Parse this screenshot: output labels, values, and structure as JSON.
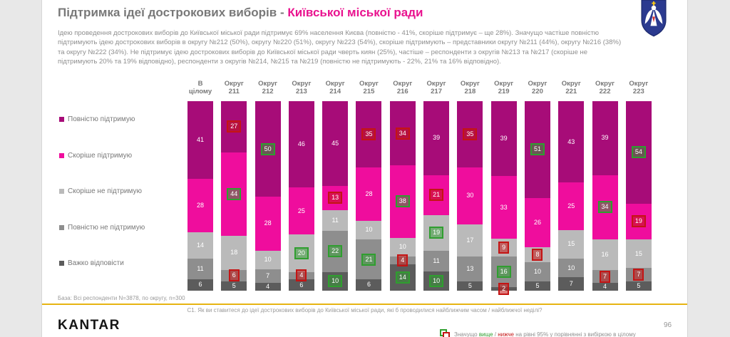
{
  "title": {
    "prefix": "Підтримка ідеї дострокових виборів - ",
    "highlight": "Київської міської ради"
  },
  "intro": "Ідею проведення дострокових виборів до Київської міської ради підтримує 69% населення Києва (повністю - 41%, скоріше підтримує – ще 28%). Значущо частіше повністю підтримують ідею дострокових виборів в округу №212 (50%), округу №220 (51%), округу №223 (54%), скоріше підтримують – представники округу №211 (44%), округу №216 (38%) та округу №222 (34%). Не підтримує ідею дострокових виборів до Київської міської ради чверть киян (25%), частіше – респонденти з округів №213 та №217 (скоріше не підтримують 20% та 19% відповідно), респонденти з округів №214, №215 та №219 (повністю не підтримують - 22%, 21% та 16% відповідно).",
  "chart_data": {
    "type": "bar",
    "stacked": true,
    "unit": "%",
    "ylim": [
      0,
      100
    ],
    "legend_position": "left",
    "categories": [
      "В цілому",
      "Округ 211",
      "Округ 212",
      "Округ 213",
      "Округ 214",
      "Округ 215",
      "Округ 216",
      "Округ 217",
      "Округ 218",
      "Округ 219",
      "Округ 220",
      "Округ 221",
      "Округ 222",
      "Округ 223"
    ],
    "series": [
      {
        "name": "Повністю підтримую",
        "color": "#a70c78",
        "values": [
          41,
          27,
          50,
          46,
          45,
          35,
          34,
          39,
          35,
          39,
          51,
          43,
          39,
          54
        ],
        "flags": [
          "",
          "r",
          "g",
          "",
          "",
          "r",
          "r",
          "",
          "r",
          "",
          "g",
          "",
          "",
          "g"
        ]
      },
      {
        "name": "Скоріше підтримую",
        "color": "#ef0d9d",
        "values": [
          28,
          44,
          28,
          25,
          13,
          28,
          38,
          21,
          30,
          33,
          26,
          25,
          34,
          19
        ],
        "flags": [
          "",
          "g",
          "",
          "",
          "r",
          "",
          "g",
          "r",
          "",
          "",
          "",
          "",
          "g",
          "r"
        ]
      },
      {
        "name": "Скоріше не підтримую",
        "color": "#bababa",
        "values": [
          14,
          18,
          10,
          20,
          11,
          10,
          10,
          19,
          17,
          9,
          8,
          15,
          16,
          15
        ],
        "flags": [
          "",
          "",
          "",
          "g",
          "",
          "",
          "",
          "g",
          "",
          "r",
          "r",
          "",
          "",
          ""
        ]
      },
      {
        "name": "Повністю не підтримую",
        "color": "#8e8e8e",
        "values": [
          11,
          6,
          7,
          4,
          22,
          21,
          4,
          11,
          13,
          16,
          10,
          10,
          7,
          7
        ],
        "flags": [
          "",
          "r",
          "",
          "r",
          "g",
          "g",
          "r",
          "",
          "",
          "g",
          "",
          "",
          "r",
          "r"
        ]
      },
      {
        "name": "Важко відповісти",
        "color": "#5c5c5c",
        "values": [
          6,
          5,
          4,
          6,
          10,
          6,
          14,
          10,
          5,
          2,
          5,
          7,
          4,
          5
        ],
        "flags": [
          "",
          "",
          "",
          "",
          "g",
          "",
          "g",
          "g",
          "",
          "r",
          "",
          "",
          "",
          ""
        ]
      }
    ],
    "significance_colors": {
      "higher": "#2f9e2f",
      "lower": "#c41414"
    }
  },
  "footer": {
    "base_note": "База: Всі респонденти N=3878, по округу, n=300",
    "question": "С1. Як ви ставитеся до ідеї дострокових виборів до Київської міської ради, які б проводилися найближчим часом / найближчої неділі?",
    "page_number": "96",
    "logo_text": "KANTAR",
    "sig_prefix": "Значущо ",
    "sig_higher": "вище",
    "sig_sep": " / ",
    "sig_lower": "нижче",
    "sig_suffix": " на рівні 95% у порівнянні з вибіркою в цілому"
  }
}
